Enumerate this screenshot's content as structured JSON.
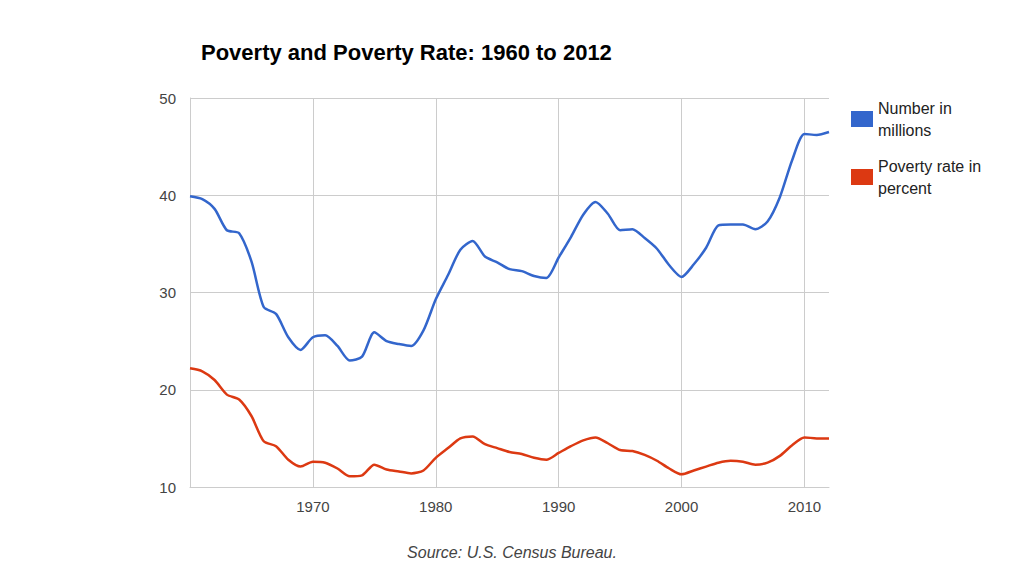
{
  "chart_data": {
    "type": "line",
    "title": "Poverty and Poverty Rate: 1960 to 2012",
    "annotations": [
      "Source: U.S. Census Bureau."
    ],
    "x": [
      1960,
      1961,
      1962,
      1963,
      1964,
      1965,
      1966,
      1967,
      1968,
      1969,
      1970,
      1971,
      1972,
      1973,
      1974,
      1975,
      1976,
      1977,
      1978,
      1979,
      1980,
      1981,
      1982,
      1983,
      1984,
      1985,
      1986,
      1987,
      1988,
      1989,
      1990,
      1991,
      1992,
      1993,
      1994,
      1995,
      1996,
      1997,
      1998,
      1999,
      2000,
      2001,
      2002,
      2003,
      2004,
      2005,
      2006,
      2007,
      2008,
      2009,
      2010,
      2011,
      2012
    ],
    "series": [
      {
        "name": "Number in millions",
        "color": "#3366cc",
        "marker": "none",
        "line_style": "solid",
        "values": [
          39.9,
          39.6,
          38.6,
          36.4,
          36.1,
          33.2,
          28.5,
          27.8,
          25.4,
          24.1,
          25.4,
          25.6,
          24.5,
          23.0,
          23.4,
          25.9,
          25.0,
          24.7,
          24.5,
          26.1,
          29.3,
          31.8,
          34.4,
          35.3,
          33.7,
          33.1,
          32.4,
          32.2,
          31.7,
          31.5,
          33.6,
          35.7,
          38.0,
          39.3,
          38.1,
          36.4,
          36.5,
          35.6,
          34.5,
          32.8,
          31.6,
          32.9,
          34.6,
          36.9,
          37.0,
          37.0,
          36.5,
          37.3,
          39.8,
          43.6,
          46.3,
          46.2,
          46.5
        ]
      },
      {
        "name": "Poverty rate in percent",
        "color": "#dc3912",
        "marker": "none",
        "line_style": "solid",
        "values": [
          22.2,
          21.9,
          21.0,
          19.5,
          19.0,
          17.3,
          14.7,
          14.2,
          12.8,
          12.1,
          12.6,
          12.5,
          11.9,
          11.1,
          11.2,
          12.3,
          11.8,
          11.6,
          11.4,
          11.7,
          13.0,
          14.0,
          15.0,
          15.2,
          14.4,
          14.0,
          13.6,
          13.4,
          13.0,
          12.8,
          13.5,
          14.2,
          14.8,
          15.1,
          14.5,
          13.8,
          13.7,
          13.3,
          12.7,
          11.9,
          11.3,
          11.7,
          12.1,
          12.5,
          12.7,
          12.6,
          12.3,
          12.5,
          13.2,
          14.3,
          15.1,
          15.0,
          15.0
        ]
      }
    ],
    "xlim": [
      1960,
      2012
    ],
    "xticks": [
      1970,
      1980,
      1990,
      2000,
      2010
    ],
    "ylim": [
      10,
      50
    ],
    "yticks": [
      10,
      20,
      30,
      40,
      50
    ],
    "grid": true,
    "legend": "top-right"
  }
}
